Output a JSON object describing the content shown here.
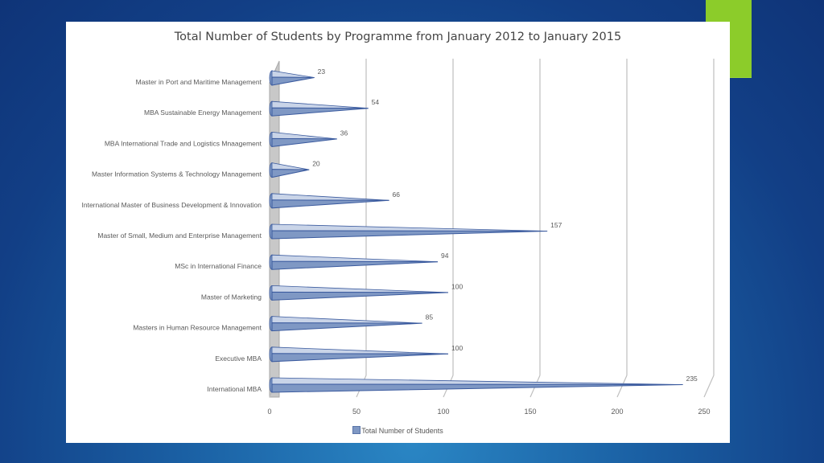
{
  "colors": {
    "accent": "#8ccc2a",
    "bar_fill": "#7f98c4",
    "bar_stroke": "#3a5a9e",
    "bar_light": "#c9d4e8",
    "grid": "#bfbfbf",
    "wall": "#c8c8c8"
  },
  "chart_data": {
    "type": "bar",
    "orientation": "horizontal",
    "style": "3d-cone",
    "title": "Total Number of Students by Programme from January 2012 to January 2015",
    "categories": [
      "Master in Port and Maritime Management",
      "MBA Sustainable Energy Management",
      "MBA International Trade and Logistics Mnaagement",
      "Master Information Systems & Technology Management",
      "International Master of Business Development & Innovation",
      "Master of Small, Medium and Enterprise Management",
      "MSc in International Finance",
      "Master of Marketing",
      "Masters in Human Resource Management",
      "Executive MBA",
      "International MBA"
    ],
    "series": [
      {
        "name": "Total Number of Students",
        "values": [
          23,
          54,
          36,
          20,
          66,
          157,
          94,
          100,
          85,
          100,
          235
        ]
      }
    ],
    "xticks": [
      0,
      50,
      100,
      150,
      200,
      250
    ],
    "xlim": [
      0,
      250
    ],
    "grid": true,
    "legend": "bottom"
  }
}
